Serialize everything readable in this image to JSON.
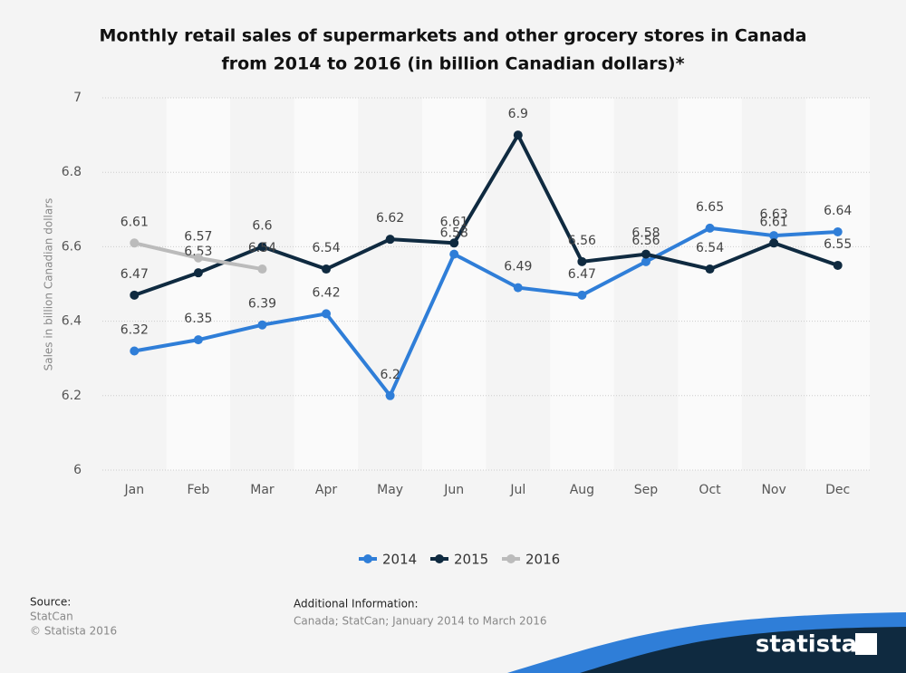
{
  "chart_data": {
    "type": "line",
    "title": "Monthly retail sales of supermarkets and other grocery stores in Canada",
    "subtitle": "from 2014 to 2016 (in billion Canadian dollars)*",
    "y_label": "Sales in billion Canadian dollars",
    "categories": [
      "Jan",
      "Feb",
      "Mar",
      "Apr",
      "May",
      "Jun",
      "Jul",
      "Aug",
      "Sep",
      "Oct",
      "Nov",
      "Dec"
    ],
    "series": [
      {
        "name": "2014",
        "color": "#2f7ed8",
        "values": [
          6.32,
          6.35,
          6.39,
          6.42,
          6.2,
          6.58,
          6.49,
          6.47,
          6.56,
          6.65,
          6.63,
          6.64
        ]
      },
      {
        "name": "2015",
        "color": "#0f2a40",
        "values": [
          6.47,
          6.53,
          6.6,
          6.54,
          6.62,
          6.61,
          6.9,
          6.56,
          6.58,
          6.54,
          6.61,
          6.55
        ]
      },
      {
        "name": "2016",
        "color": "#bbbbbb",
        "values": [
          6.61,
          6.57,
          6.54,
          null,
          null,
          null,
          null,
          null,
          null,
          null,
          null,
          null
        ]
      }
    ],
    "ylim": [
      6,
      7
    ],
    "yticks": [
      6,
      6.2,
      6.4,
      6.6,
      6.8,
      7
    ],
    "grid": true
  },
  "footer": {
    "source_label": "Source:",
    "source": "StatCan",
    "copyright": "© Statista 2016",
    "info_label": "Additional Information:",
    "info": "Canada; StatCan; January 2014 to March 2016",
    "brand": "statista"
  }
}
